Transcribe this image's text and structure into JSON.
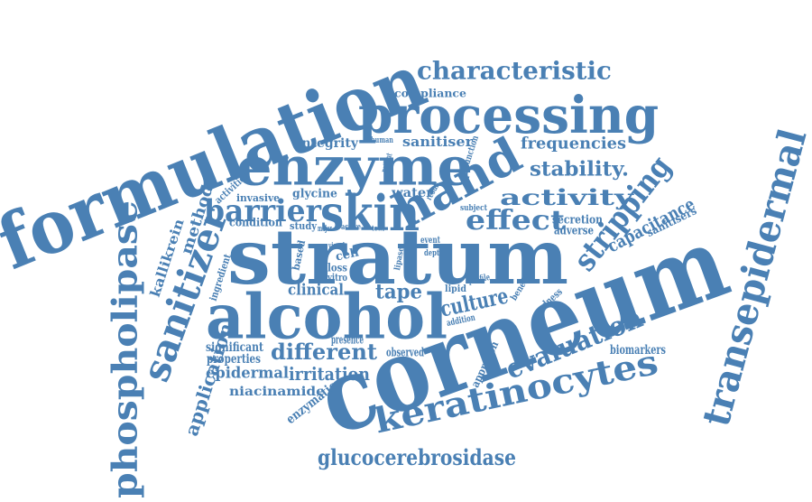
{
  "colors": {
    "word": "#4a80b4",
    "background": "#ffffff"
  },
  "words": [
    "formulation",
    "processing",
    "characteristic",
    "compliance",
    "enzyme",
    "hand",
    "skin",
    "barrier",
    "stratum",
    "corneum",
    "alcohol",
    "phospholipase",
    "sanitizer",
    "transepidermal",
    "keratinocytes",
    "glucocerebrosidase",
    "evaluation",
    "stripping",
    "capacitance",
    "activity",
    "effect",
    "stability.",
    "frequencies",
    "different",
    "irritation",
    "epidermal",
    "niacinamide",
    "application",
    "kallikrein",
    "method",
    "culture",
    "tape",
    "clinical",
    "integrity",
    "sanitiser",
    "glycine",
    "water",
    "invasive",
    "condition",
    "significant",
    "properties",
    "presence",
    "observed",
    "approach",
    "biomarkers",
    "enzymatic",
    "secretion",
    "adverse",
    "sanitisers",
    "activities",
    "human",
    "patient",
    "result",
    "function",
    "subject",
    "study",
    "major",
    "active",
    "tewl",
    "visual",
    "cell",
    "loss",
    "vitro",
    "based",
    "ingredient",
    "lipid",
    "profile",
    "addition",
    "benefit",
    "redness",
    "event",
    "depth",
    "lipase"
  ]
}
